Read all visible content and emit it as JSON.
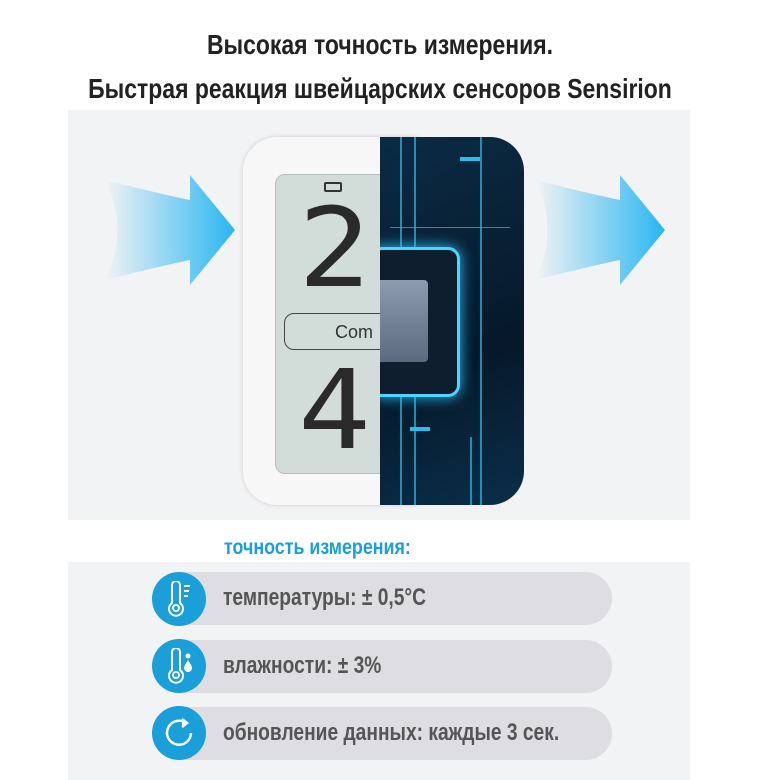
{
  "title": {
    "line1": "Высокая точность измерения.",
    "line2": "Быстрая реакция швейцарских сенсоров Sensirion"
  },
  "device": {
    "digit_top": "2",
    "digit_bottom": "4",
    "comfort_label": "Com"
  },
  "accuracy": {
    "heading": "точность измерения:",
    "items": [
      {
        "icon": "thermometer-icon",
        "label": "температуры: ± 0,5°C"
      },
      {
        "icon": "humidity-thermometer-icon",
        "label": "влажности: ± 3%"
      },
      {
        "icon": "refresh-icon",
        "label": "обновление данных: каждые 3 сек."
      }
    ]
  },
  "colors": {
    "accent": "#1a9fd8",
    "pill": "#dedee2",
    "text": "#555555"
  }
}
